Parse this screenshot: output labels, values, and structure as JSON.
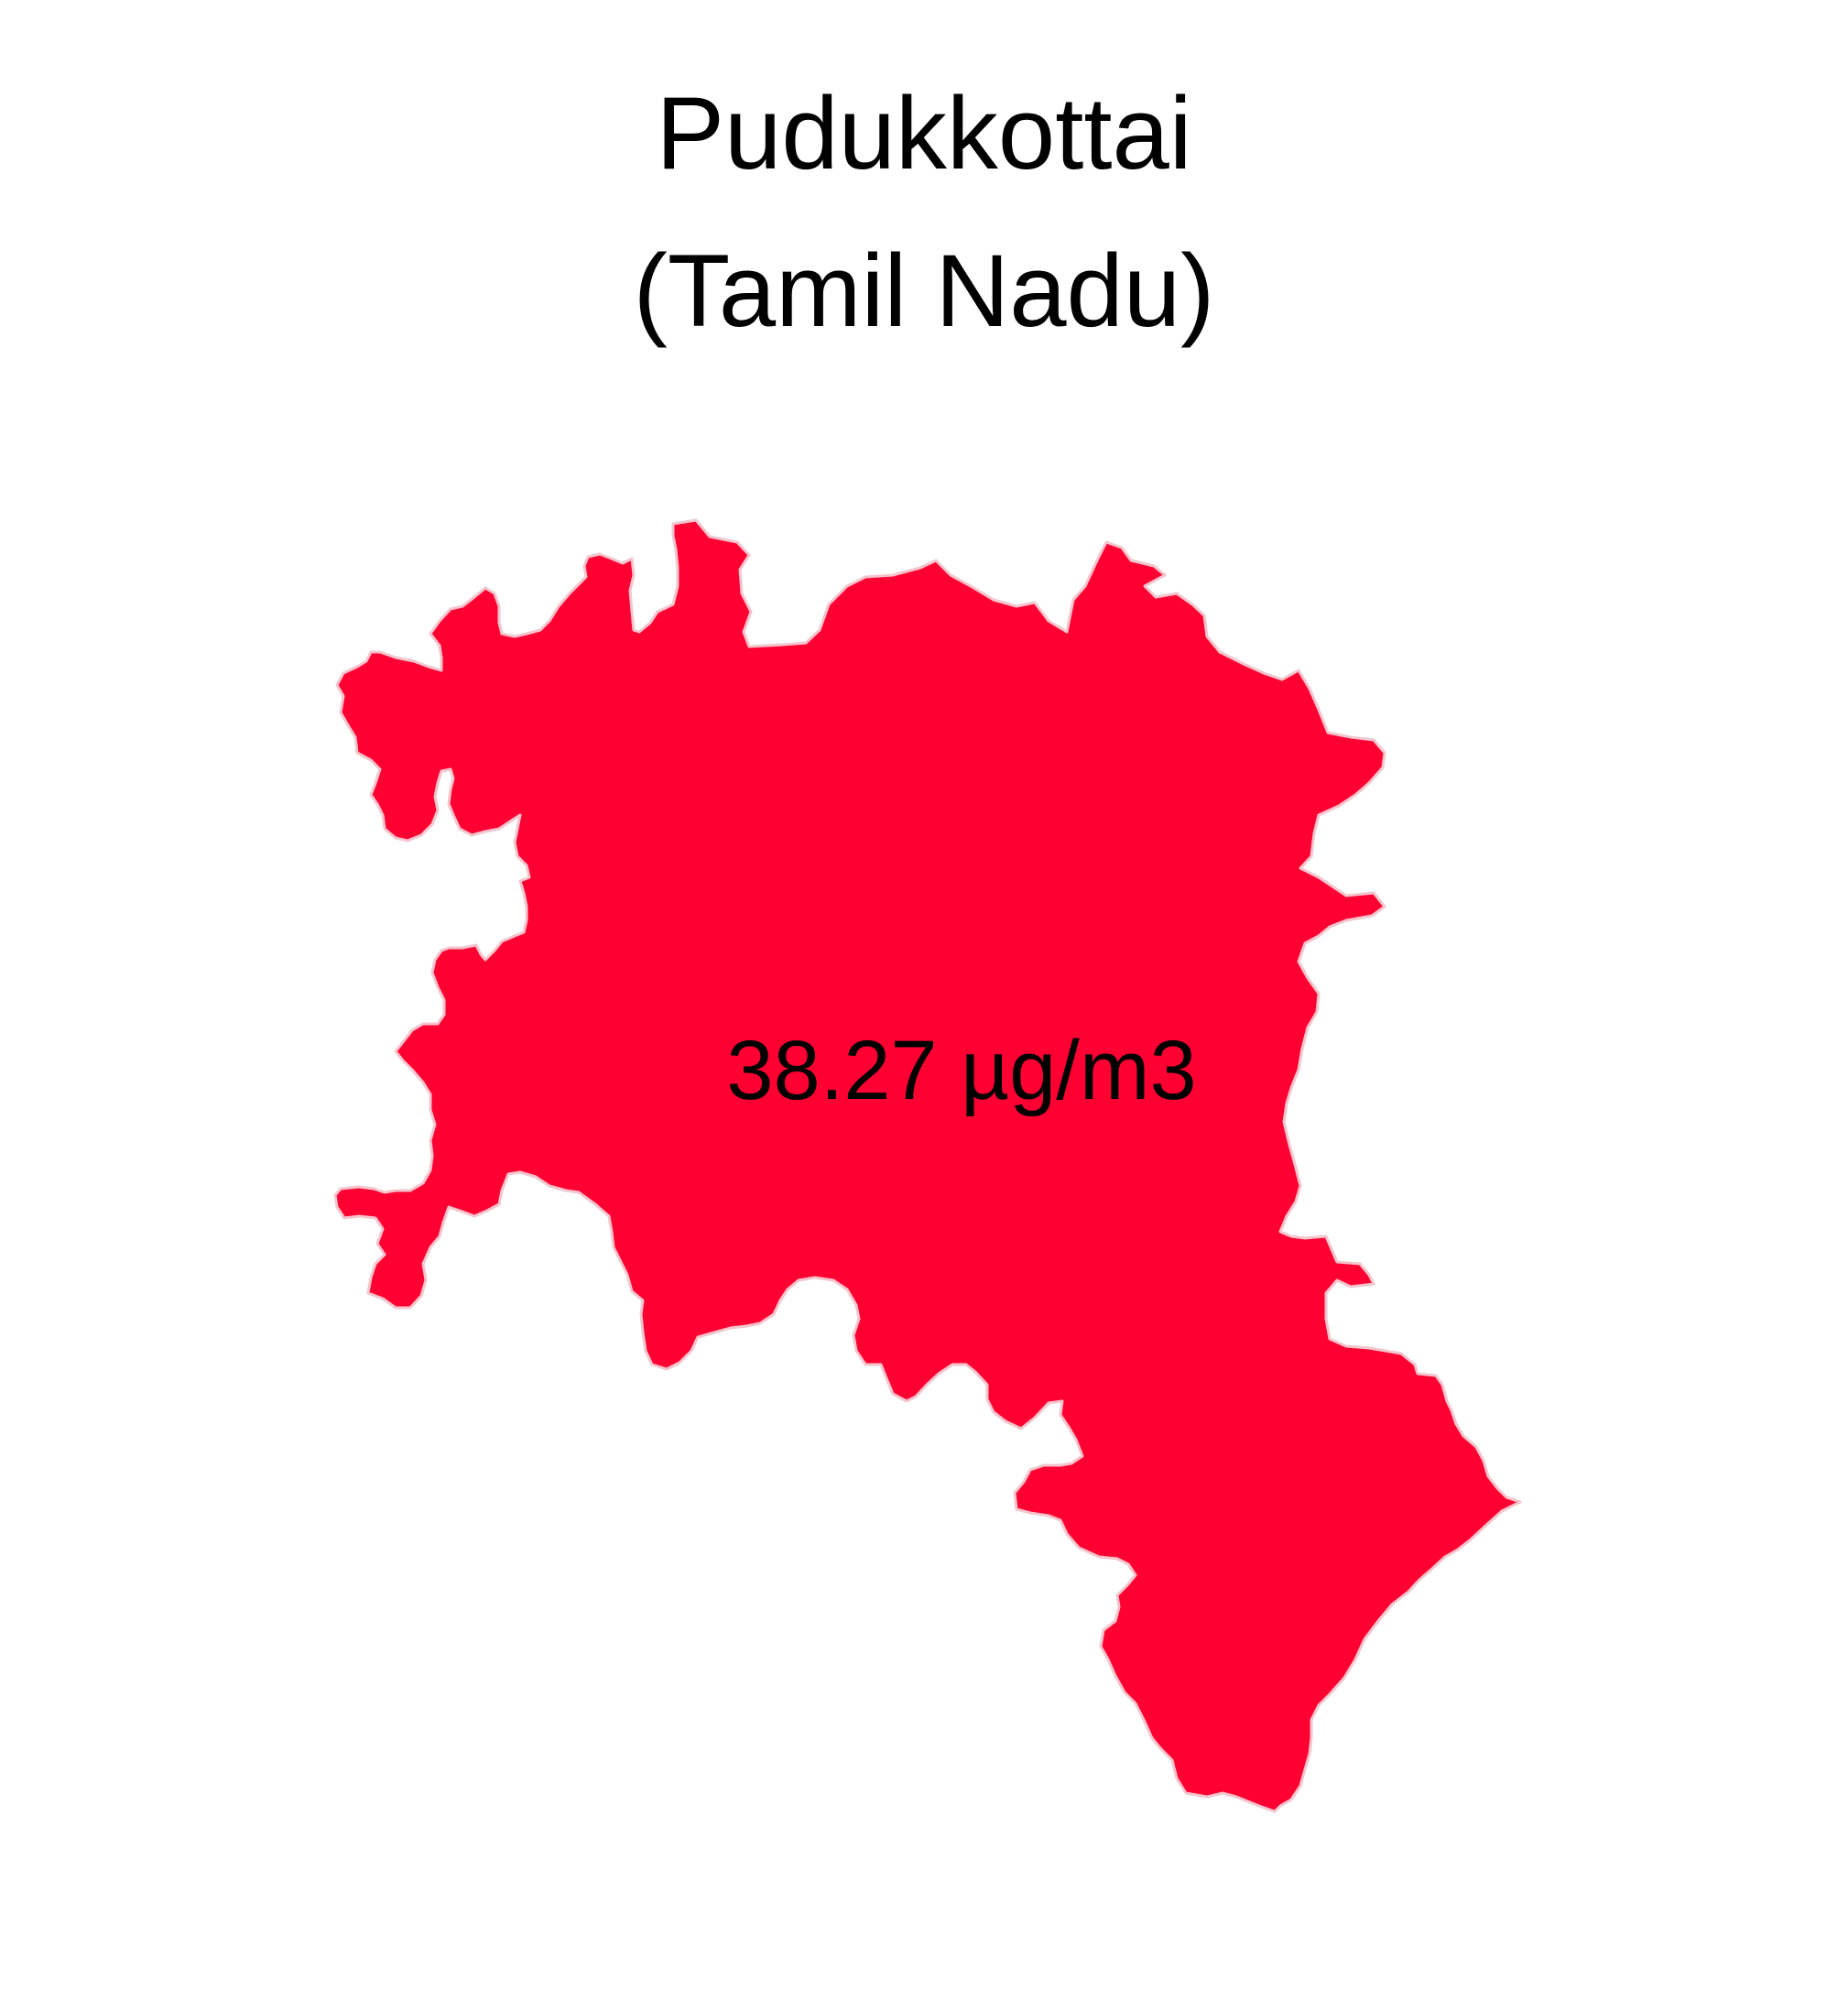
{
  "map": {
    "title_line1": "Pudukkottai",
    "title_line2": "(Tamil Nadu)",
    "region_name": "Pudukkottai",
    "value_label": "38.27 µg/m3",
    "value": 38.27,
    "unit": "µg/m3",
    "fill_color": "#ff0033",
    "background_color": "#ffffff",
    "text_color": "#000000"
  }
}
